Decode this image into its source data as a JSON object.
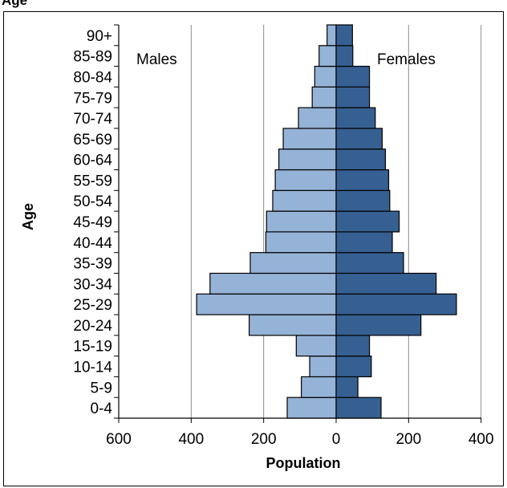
{
  "top_label": "Age",
  "chart_data": {
    "type": "bar",
    "orientation": "horizontal",
    "subtype": "population-pyramid",
    "title": "",
    "xlabel": "Population",
    "ylabel": "Age",
    "categories": [
      "0-4",
      "5-9",
      "10-14",
      "15-19",
      "20-24",
      "25-29",
      "30-34",
      "35-39",
      "40-44",
      "45-49",
      "50-54",
      "55-59",
      "60-64",
      "65-69",
      "70-74",
      "75-79",
      "80-84",
      "85-89",
      "90+"
    ],
    "series": [
      {
        "name": "Males",
        "side": "left",
        "color": "#95b3d7",
        "values": [
          135,
          96,
          73,
          110,
          240,
          385,
          348,
          237,
          194,
          192,
          175,
          168,
          158,
          146,
          104,
          66,
          59,
          47,
          25
        ]
      },
      {
        "name": "Females",
        "side": "right",
        "color": "#366092",
        "values": [
          124,
          60,
          97,
          92,
          234,
          332,
          276,
          186,
          155,
          174,
          148,
          145,
          136,
          127,
          108,
          92,
          92,
          46,
          45
        ]
      }
    ],
    "xticks": [
      "600",
      "400",
      "200",
      "0",
      "200",
      "400"
    ],
    "xlim": [
      -600,
      400
    ],
    "grid": true,
    "legend": "inline-labels"
  }
}
